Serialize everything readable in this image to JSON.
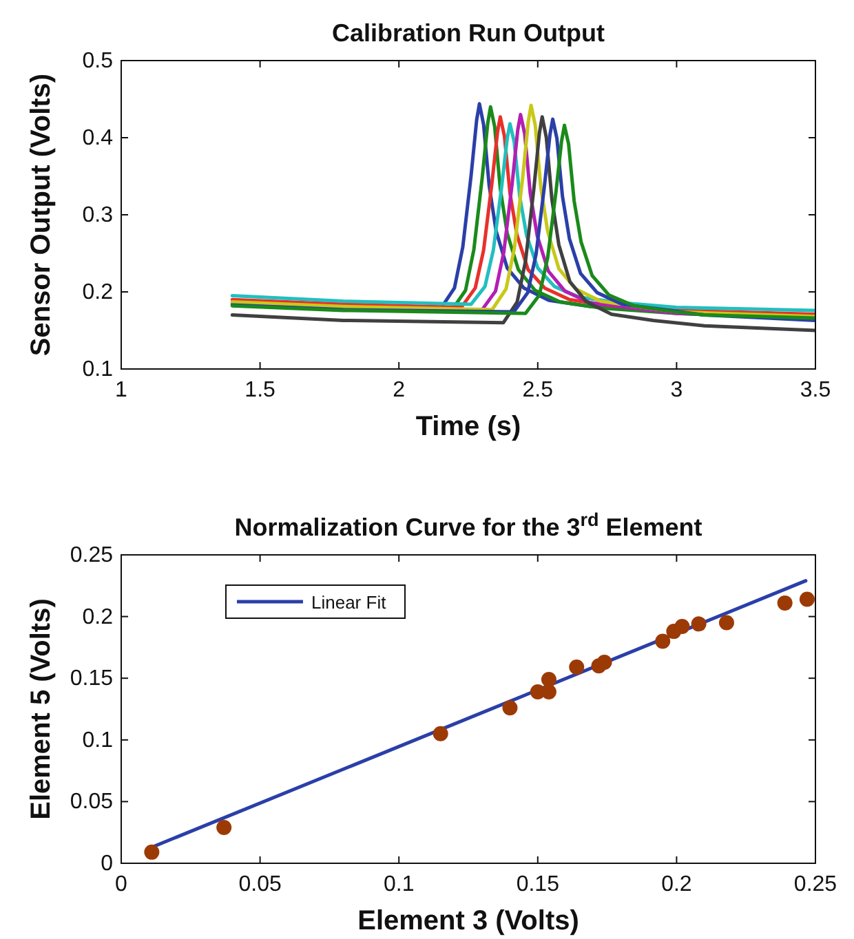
{
  "chart_data": [
    {
      "type": "line",
      "title": "Calibration Run Output",
      "xlabel": "Time (s)",
      "ylabel": "Sensor Output (Volts)",
      "xlim": [
        1,
        3.5
      ],
      "ylim": [
        0.1,
        0.5
      ],
      "xticks": [
        1,
        1.5,
        2,
        2.5,
        3,
        3.5
      ],
      "yticks": [
        0.1,
        0.2,
        0.3,
        0.4,
        0.5
      ],
      "line_style": "solid",
      "series": [
        {
          "color": "#2b3fa8",
          "x": [
            1.4,
            1.8,
            2.15,
            2.2,
            2.23,
            2.26,
            2.28,
            2.29,
            2.305,
            2.325,
            2.35,
            2.39,
            2.45,
            2.54,
            2.69,
            3.0,
            3.5
          ],
          "values": [
            0.186,
            0.181,
            0.178,
            0.205,
            0.258,
            0.351,
            0.423,
            0.444,
            0.417,
            0.338,
            0.279,
            0.231,
            0.205,
            0.189,
            0.181,
            0.175,
            0.168
          ]
        },
        {
          "color": "#1a8a1a",
          "x": [
            1.4,
            1.8,
            2.19,
            2.24,
            2.27,
            2.3,
            2.32,
            2.33,
            2.345,
            2.365,
            2.39,
            2.43,
            2.49,
            2.58,
            2.73,
            3.0,
            3.5
          ],
          "values": [
            0.184,
            0.179,
            0.176,
            0.202,
            0.255,
            0.348,
            0.419,
            0.44,
            0.414,
            0.334,
            0.276,
            0.229,
            0.202,
            0.187,
            0.179,
            0.172,
            0.166
          ]
        },
        {
          "color": "#e8312a",
          "x": [
            1.4,
            1.8,
            2.225,
            2.275,
            2.305,
            2.335,
            2.355,
            2.365,
            2.38,
            2.4,
            2.425,
            2.465,
            2.525,
            2.615,
            2.765,
            3.0,
            3.5
          ],
          "values": [
            0.19,
            0.184,
            0.18,
            0.205,
            0.254,
            0.341,
            0.407,
            0.427,
            0.402,
            0.328,
            0.274,
            0.229,
            0.205,
            0.19,
            0.182,
            0.176,
            0.171
          ]
        },
        {
          "color": "#22bfbf",
          "x": [
            1.4,
            1.8,
            2.26,
            2.31,
            2.34,
            2.37,
            2.39,
            2.4,
            2.415,
            2.435,
            2.46,
            2.5,
            2.56,
            2.65,
            2.8,
            3.0,
            3.5
          ],
          "values": [
            0.195,
            0.188,
            0.184,
            0.207,
            0.254,
            0.336,
            0.399,
            0.418,
            0.395,
            0.324,
            0.273,
            0.231,
            0.207,
            0.193,
            0.186,
            0.18,
            0.176
          ]
        },
        {
          "color": "#b31fb3",
          "x": [
            1.4,
            1.8,
            2.298,
            2.348,
            2.378,
            2.408,
            2.428,
            2.438,
            2.453,
            2.473,
            2.498,
            2.538,
            2.598,
            2.688,
            2.838,
            3.0,
            3.5
          ],
          "values": [
            0.186,
            0.18,
            0.176,
            0.201,
            0.252,
            0.341,
            0.41,
            0.43,
            0.405,
            0.328,
            0.273,
            0.227,
            0.201,
            0.186,
            0.179,
            0.172,
            0.165
          ]
        },
        {
          "color": "#c8c81a",
          "x": [
            1.4,
            1.8,
            2.336,
            2.386,
            2.416,
            2.446,
            2.466,
            2.476,
            2.491,
            2.511,
            2.536,
            2.576,
            2.636,
            2.726,
            2.876,
            3.0,
            3.5
          ],
          "values": [
            0.187,
            0.181,
            0.177,
            0.204,
            0.257,
            0.349,
            0.421,
            0.442,
            0.416,
            0.336,
            0.278,
            0.23,
            0.204,
            0.188,
            0.18,
            0.174,
            0.168
          ]
        },
        {
          "color": "#404040",
          "x": [
            1.4,
            1.8,
            2.376,
            2.426,
            2.456,
            2.486,
            2.506,
            2.516,
            2.531,
            2.551,
            2.576,
            2.616,
            2.676,
            2.766,
            2.916,
            3.1,
            3.5
          ],
          "values": [
            0.17,
            0.163,
            0.16,
            0.187,
            0.24,
            0.334,
            0.406,
            0.427,
            0.4,
            0.32,
            0.261,
            0.213,
            0.187,
            0.171,
            0.163,
            0.156,
            0.15
          ]
        },
        {
          "color": "#2b3fa8",
          "x": [
            1.4,
            1.8,
            2.414,
            2.464,
            2.494,
            2.524,
            2.544,
            2.554,
            2.569,
            2.589,
            2.614,
            2.654,
            2.714,
            2.804,
            2.954,
            3.1,
            3.5
          ],
          "values": [
            0.183,
            0.177,
            0.174,
            0.199,
            0.249,
            0.337,
            0.404,
            0.424,
            0.399,
            0.324,
            0.269,
            0.224,
            0.199,
            0.184,
            0.177,
            0.17,
            0.163
          ]
        },
        {
          "color": "#1a8a1a",
          "x": [
            1.4,
            1.8,
            2.456,
            2.506,
            2.536,
            2.566,
            2.586,
            2.596,
            2.611,
            2.631,
            2.656,
            2.696,
            2.756,
            2.846,
            2.996,
            3.1,
            3.5
          ],
          "values": [
            0.182,
            0.176,
            0.172,
            0.196,
            0.245,
            0.331,
            0.396,
            0.416,
            0.392,
            0.318,
            0.265,
            0.221,
            0.196,
            0.182,
            0.174,
            0.17,
            0.166
          ]
        }
      ]
    },
    {
      "type": "scatter",
      "title": "Normalization Curve for the 3$^{rd}$ Element",
      "xlabel": "Element 3 (Volts)",
      "ylabel": "Element 5 (Volts)",
      "xlim": [
        0,
        0.25
      ],
      "ylim": [
        0,
        0.25
      ],
      "xticks": [
        0,
        0.05,
        0.1,
        0.15,
        0.2,
        0.25
      ],
      "yticks": [
        0,
        0.05,
        0.1,
        0.15,
        0.2,
        0.25
      ],
      "legend": "top left",
      "series": [
        {
          "type": "line",
          "name": "Linear Fit",
          "color": "#2b3fa8",
          "x": [
            0.011,
            0.2465
          ],
          "values": [
            0.013,
            0.229
          ]
        },
        {
          "color": "#9c3a06",
          "marker": "circle",
          "x": [
            0.011,
            0.037,
            0.115,
            0.14,
            0.15,
            0.154,
            0.154,
            0.164,
            0.172,
            0.174,
            0.195,
            0.199,
            0.202,
            0.208,
            0.218,
            0.239,
            0.247
          ],
          "values": [
            0.009,
            0.029,
            0.105,
            0.126,
            0.139,
            0.149,
            0.139,
            0.159,
            0.16,
            0.163,
            0.18,
            0.188,
            0.192,
            0.194,
            0.195,
            0.211,
            0.214
          ]
        }
      ]
    }
  ]
}
